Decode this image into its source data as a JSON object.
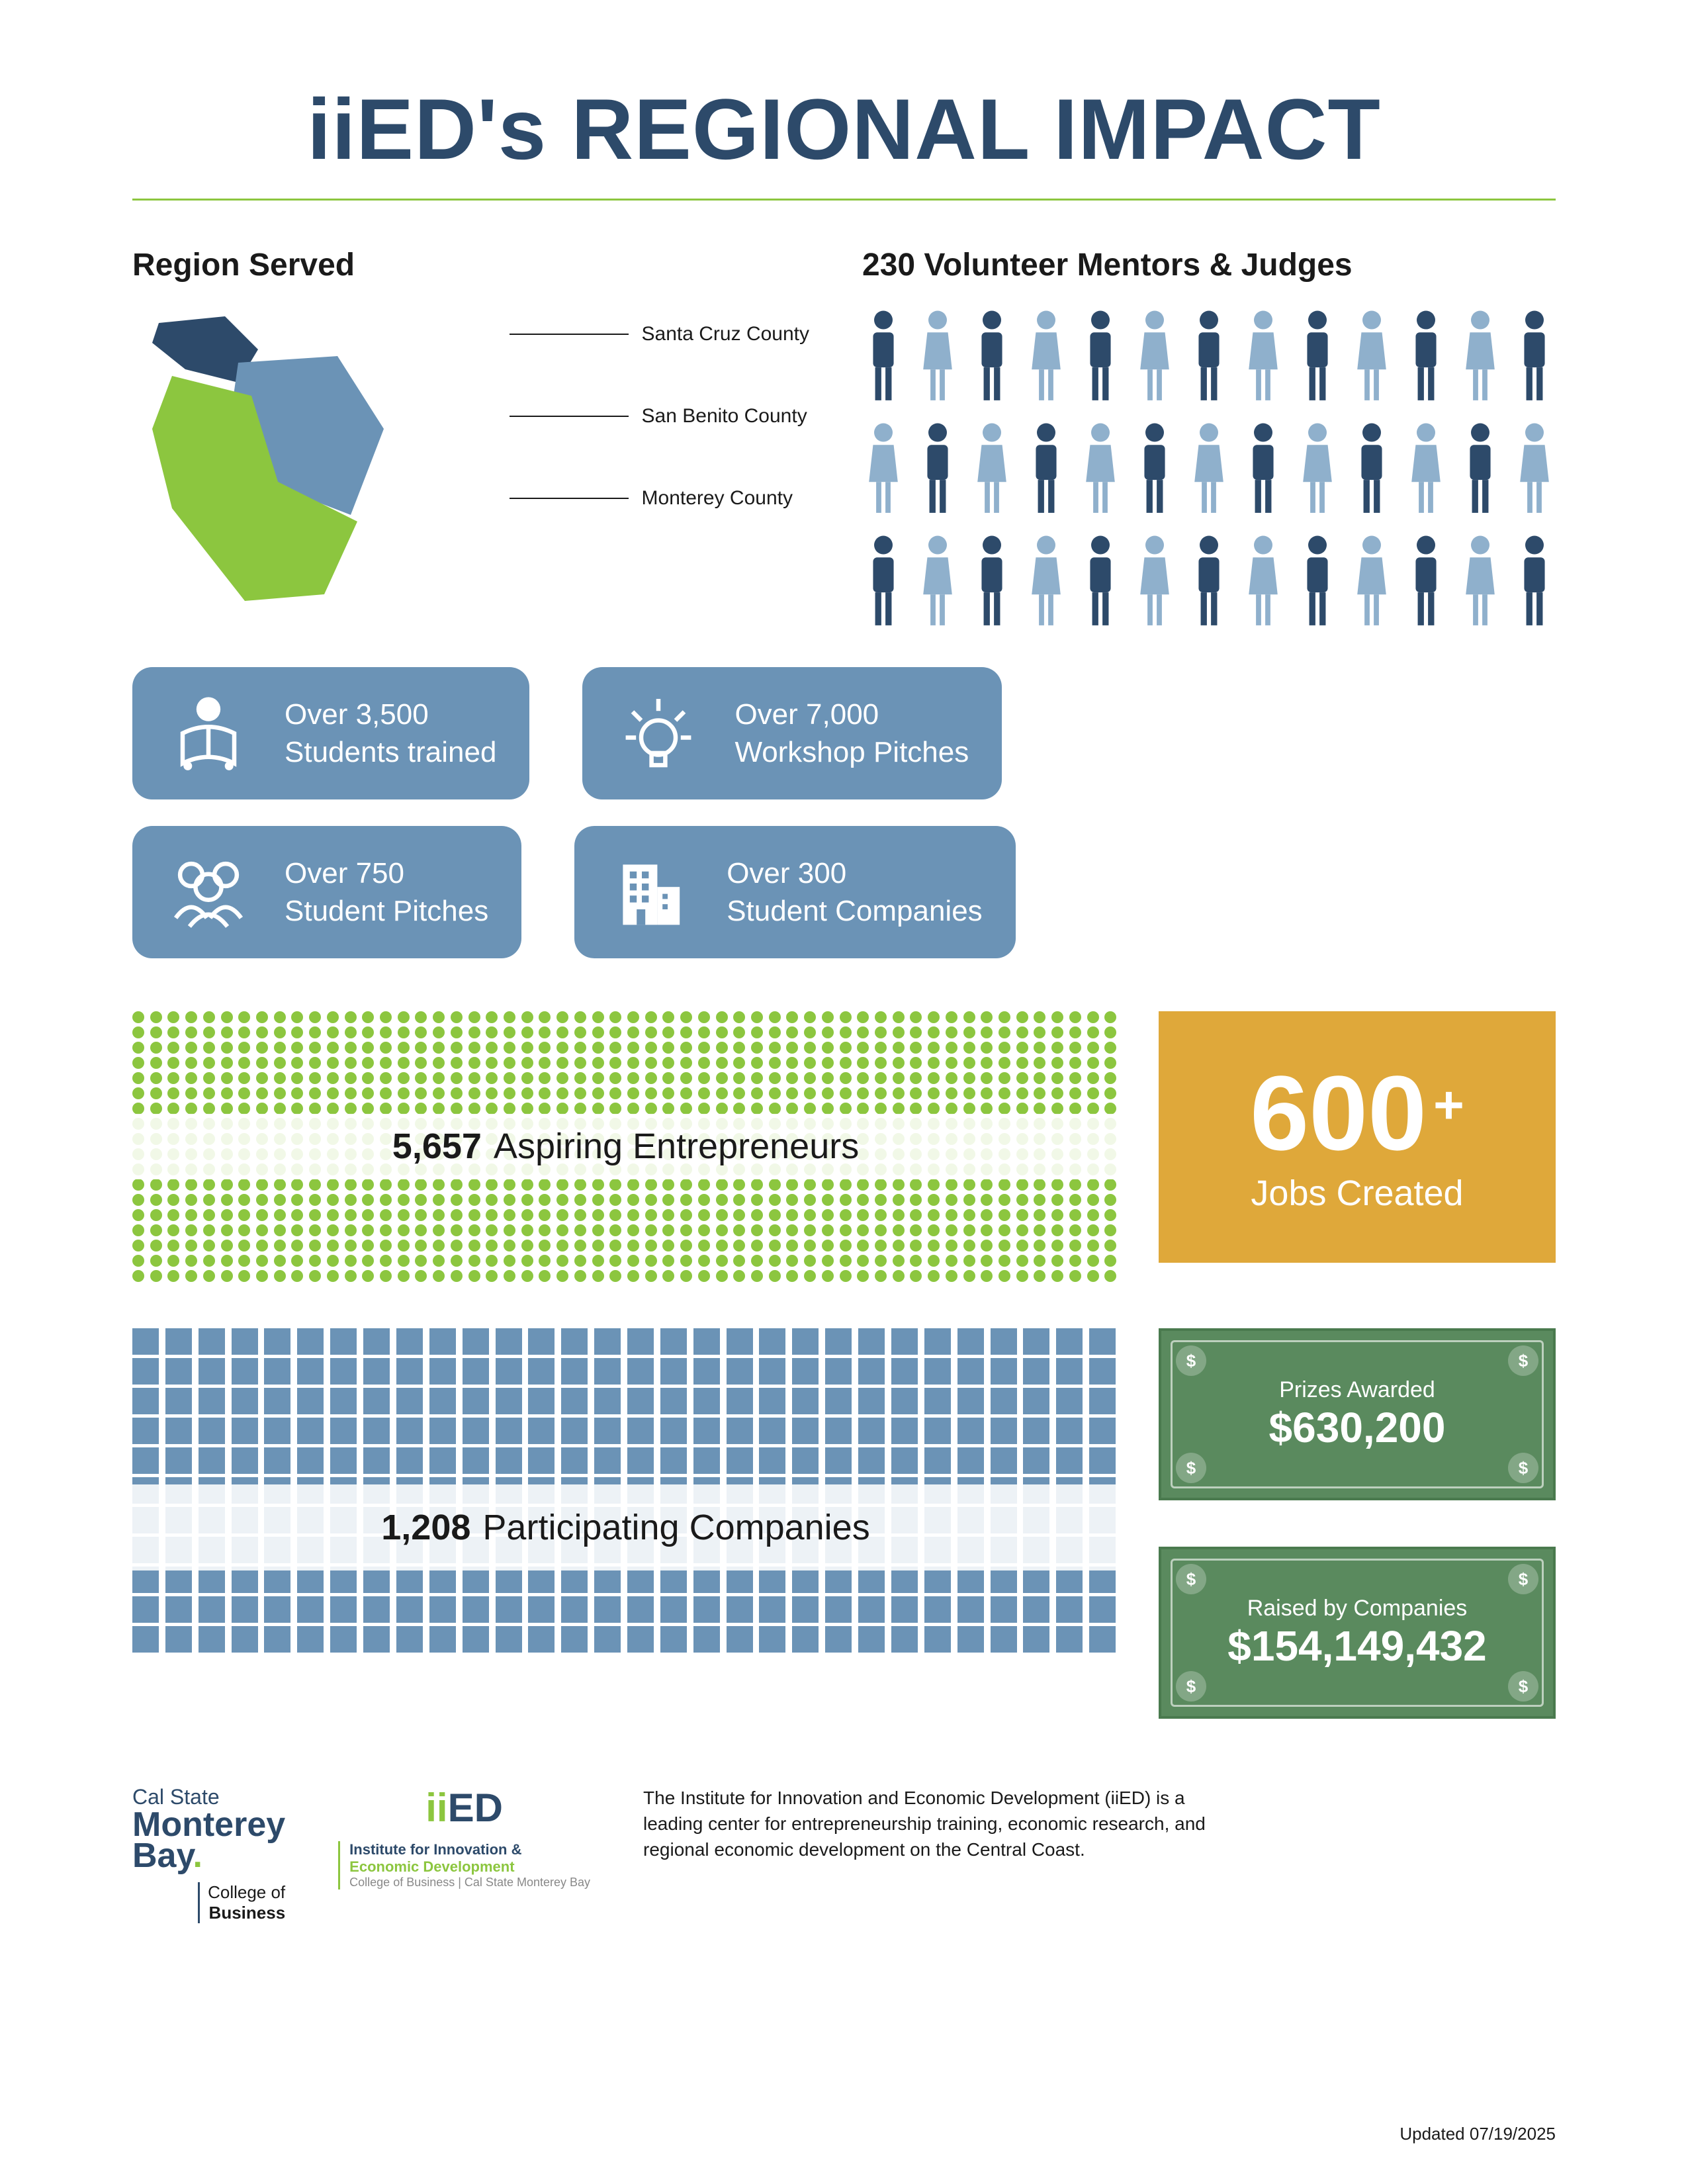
{
  "title_prefix": "iiED's ",
  "title_rest": "REGIONAL IMPACT",
  "colors": {
    "navy": "#2d4a6a",
    "blue": "#6b93b6",
    "light_blue": "#8fb0cc",
    "green": "#8cc63f",
    "gold": "#dfa83a",
    "money_green": "#5a8a5e",
    "text": "#1a1a1a",
    "white": "#ffffff"
  },
  "region": {
    "heading": "Region Served",
    "counties": [
      "Santa Cruz County",
      "San Benito County",
      "Monterey County"
    ]
  },
  "mentors": {
    "heading": "230 Volunteer Mentors & Judges",
    "rows": 3,
    "per_row": 13
  },
  "stats": [
    {
      "big": "Over 3,500",
      "small": "Students trained",
      "icon": "reader"
    },
    {
      "big": "Over 7,000",
      "small": "Workshop Pitches",
      "icon": "bulb"
    },
    {
      "big": "Over 750",
      "small": "Student Pitches",
      "icon": "group"
    },
    {
      "big": "Over 300",
      "small": "Student Companies",
      "icon": "building"
    }
  ],
  "entrepreneurs": {
    "number": "5,657",
    "label": "Aspiring Entrepreneurs",
    "dot_rows": 18,
    "dot_cols": 56
  },
  "companies": {
    "number": "1,208",
    "label": "Participating Companies",
    "sq_rows": 11,
    "sq_cols": 30
  },
  "jobs": {
    "number": "600",
    "suffix": "+",
    "label": "Jobs Created"
  },
  "prizes": {
    "label": "Prizes Awarded",
    "amount": "$630,200"
  },
  "raised": {
    "label": "Raised by Companies",
    "amount": "$154,149,432"
  },
  "footer": {
    "csumb_l1": "Cal State",
    "csumb_l2a": "Monterey",
    "csumb_l2b": "Bay",
    "csumb_l3a": "College of",
    "csumb_l3b": "Business",
    "iied_mark_ii": "ii",
    "iied_mark_ed": "ED",
    "iied_l1": "Institute for Innovation &",
    "iied_l2": "Economic Development",
    "iied_l3": "College of Business | Cal State Monterey Bay",
    "description": "The Institute for Innovation and Economic Development (iiED) is a leading center for entrepreneurship training, economic research, and regional economic development on the Central Coast.",
    "updated": "Updated 07/19/2025"
  }
}
